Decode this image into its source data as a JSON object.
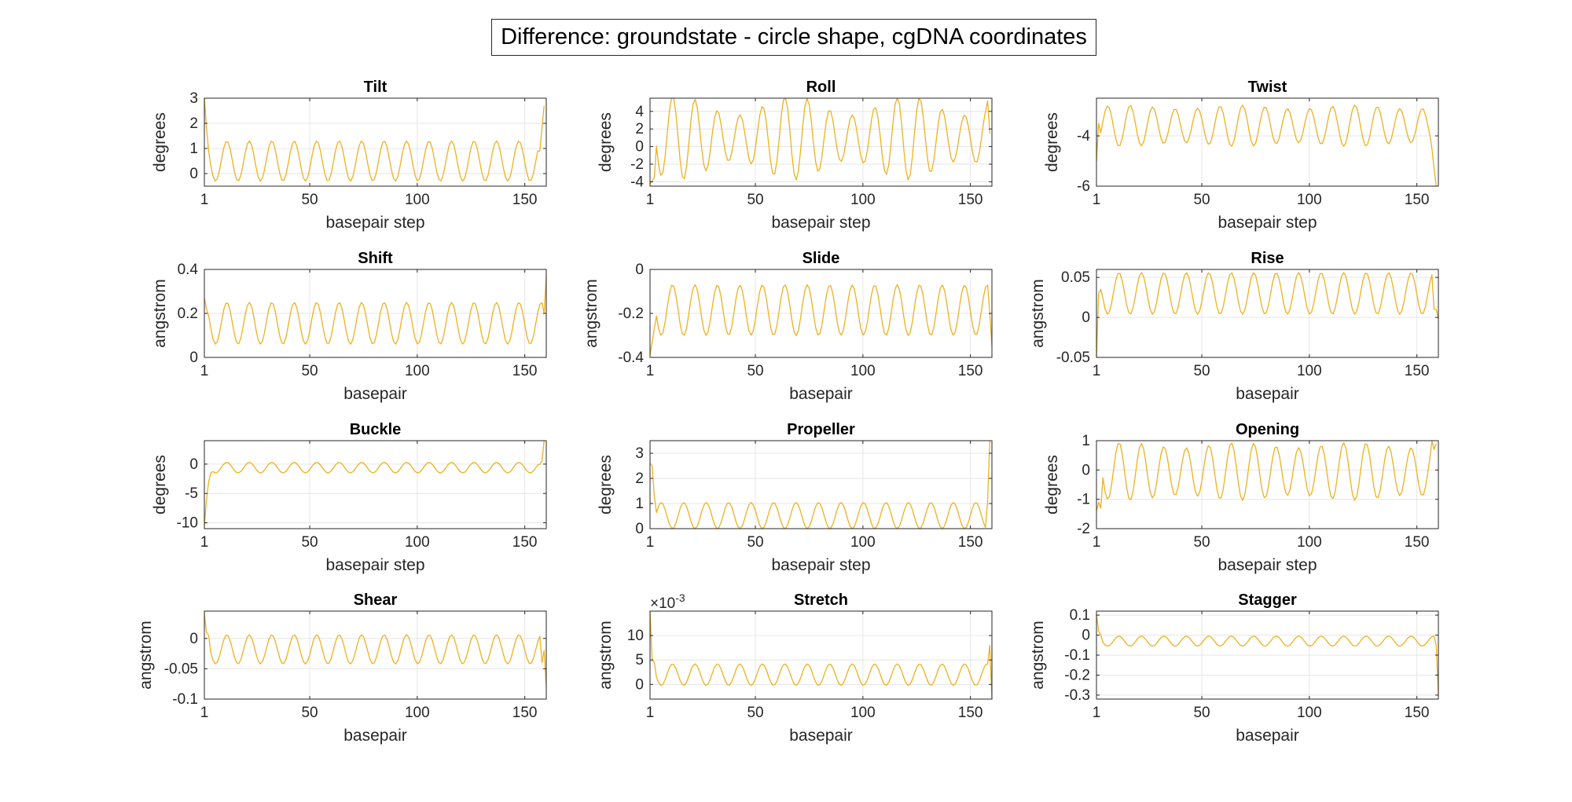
{
  "figure": {
    "title": "Difference: groundstate - circle shape, cgDNA coordinates"
  },
  "colors": {
    "line": "#EDB120",
    "axes": "#262626",
    "grid": "#E6E6E6",
    "background": "#FFFFFF"
  },
  "chart_data": [
    {
      "type": "line",
      "title": "Tilt",
      "xlabel": "basepair step",
      "ylabel": "degrees",
      "x_range": [
        1,
        159
      ],
      "xlim": [
        1,
        160
      ],
      "xticks": [
        1,
        50,
        100,
        150
      ],
      "ylim": [
        -0.5,
        3
      ],
      "yticks": [
        0,
        1,
        2,
        3
      ],
      "exponent": "",
      "grid": true,
      "series": [
        {
          "mean": 0.5,
          "amplitude": 0.8,
          "period": 10.45,
          "phase": 0,
          "amplitude_drift": 0,
          "start": [
            3.0,
            1.8,
            0.9
          ],
          "end": [
            0.9,
            1.8,
            2.7
          ]
        }
      ]
    },
    {
      "type": "line",
      "title": "Roll",
      "xlabel": "basepair step",
      "ylabel": "degrees",
      "x_range": [
        1,
        159
      ],
      "xlim": [
        1,
        160
      ],
      "xticks": [
        1,
        50,
        100,
        150
      ],
      "ylim": [
        -4.5,
        5.5
      ],
      "yticks": [
        -4,
        -2,
        0,
        2,
        4
      ],
      "exponent": "",
      "grid": true,
      "series": [
        {
          "mean": 1.0,
          "amplitude": 3.7,
          "period": 10.45,
          "phase": 0,
          "amplitude_drift": 0.3,
          "start": [
            -4.2,
            -3.9,
            -3.5
          ],
          "end": [
            5.2,
            1.5
          ]
        }
      ]
    },
    {
      "type": "line",
      "title": "Twist",
      "xlabel": "basepair step",
      "ylabel": "degrees",
      "x_range": [
        1,
        159
      ],
      "xlim": [
        1,
        160
      ],
      "xticks": [
        1,
        50,
        100,
        150
      ],
      "ylim": [
        -6,
        -2.5
      ],
      "yticks": [
        -6,
        -4
      ],
      "exponent": "",
      "grid": true,
      "series": [
        {
          "mean": -3.6,
          "amplitude": 0.75,
          "period": 10.45,
          "phase": 3.14,
          "amplitude_drift": 0.1,
          "start": [
            -5.0,
            -3.5
          ],
          "end": [
            -4.5,
            -5.3,
            -6.0
          ]
        }
      ]
    },
    {
      "type": "line",
      "title": "Shift",
      "xlabel": "basepair",
      "ylabel": "angstrom",
      "x_range": [
        1,
        160
      ],
      "xlim": [
        1,
        160
      ],
      "xticks": [
        1,
        50,
        100,
        150
      ],
      "ylim": [
        0,
        0.4
      ],
      "yticks": [
        0,
        0.2,
        0.4
      ],
      "exponent": "",
      "grid": true,
      "series": [
        {
          "mean": 0.155,
          "amplitude": 0.095,
          "period": 10.45,
          "phase": 0,
          "amplitude_drift": 0,
          "start": [
            0.27,
            0.22
          ],
          "end": [
            0.2,
            0.37
          ]
        }
      ]
    },
    {
      "type": "line",
      "title": "Slide",
      "xlabel": "basepair",
      "ylabel": "angstrom",
      "x_range": [
        1,
        160
      ],
      "xlim": [
        1,
        160
      ],
      "xticks": [
        1,
        50,
        100,
        150
      ],
      "ylim": [
        -0.4,
        0
      ],
      "yticks": [
        -0.4,
        -0.2,
        0
      ],
      "exponent": "",
      "grid": true,
      "series": [
        {
          "mean": -0.185,
          "amplitude": 0.115,
          "period": 10.45,
          "phase": 0,
          "amplitude_drift": 0.01,
          "start": [
            -0.39,
            -0.33,
            -0.27
          ],
          "end": [
            -0.2,
            -0.35
          ]
        }
      ]
    },
    {
      "type": "line",
      "title": "Rise",
      "xlabel": "basepair",
      "ylabel": "angstrom",
      "x_range": [
        1,
        160
      ],
      "xlim": [
        1,
        160
      ],
      "xticks": [
        1,
        50,
        100,
        150
      ],
      "ylim": [
        -0.05,
        0.06
      ],
      "yticks": [
        -0.05,
        0,
        0.05
      ],
      "exponent": "",
      "grid": true,
      "series": [
        {
          "mean": 0.03,
          "amplitude": 0.026,
          "period": 10.45,
          "phase": 0,
          "amplitude_drift": 0,
          "start": [
            -0.05,
            0.03,
            0.035
          ],
          "end": [
            0.01,
            0.01,
            -0.002
          ]
        }
      ]
    },
    {
      "type": "line",
      "title": "Buckle",
      "xlabel": "basepair step",
      "ylabel": "degrees",
      "x_range": [
        1,
        159
      ],
      "xlim": [
        1,
        160
      ],
      "xticks": [
        1,
        50,
        100,
        150
      ],
      "ylim": [
        -11,
        4
      ],
      "yticks": [
        -10,
        -5,
        0
      ],
      "exponent": "",
      "grid": true,
      "series": [
        {
          "mean": -0.6,
          "amplitude": 0.9,
          "period": 10.45,
          "phase": 0,
          "amplitude_drift": 0,
          "start": [
            -10.5,
            -6,
            -3,
            -1.5
          ],
          "end": [
            0,
            0.5,
            4
          ]
        }
      ]
    },
    {
      "type": "line",
      "title": "Propeller",
      "xlabel": "basepair step",
      "ylabel": "degrees",
      "x_range": [
        1,
        159
      ],
      "xlim": [
        1,
        160
      ],
      "xticks": [
        1,
        50,
        100,
        150
      ],
      "ylim": [
        0,
        3.5
      ],
      "yticks": [
        0,
        1,
        2,
        3
      ],
      "exponent": "",
      "grid": true,
      "series": [
        {
          "mean": 0.52,
          "amplitude": 0.52,
          "period": 10.45,
          "phase": 3.14,
          "amplitude_drift": 0,
          "start": [
            2.6,
            2.5,
            1.3
          ],
          "end": [
            1.1,
            3.5
          ]
        }
      ]
    },
    {
      "type": "line",
      "title": "Opening",
      "xlabel": "basepair step",
      "ylabel": "degrees",
      "x_range": [
        1,
        159
      ],
      "xlim": [
        1,
        160
      ],
      "xticks": [
        1,
        50,
        100,
        150
      ],
      "ylim": [
        -2,
        1
      ],
      "yticks": [
        -2,
        -1,
        0,
        1
      ],
      "exponent": "",
      "grid": true,
      "series": [
        {
          "mean": -0.05,
          "amplitude": 0.9,
          "period": 10.45,
          "phase": 0,
          "amplitude_drift": 0.1,
          "start": [
            -1.4,
            -1.1,
            -1.3
          ],
          "end": [
            1.0,
            0.7,
            0.9
          ]
        }
      ]
    },
    {
      "type": "line",
      "title": "Shear",
      "xlabel": "basepair",
      "ylabel": "angstrom",
      "x_range": [
        1,
        160
      ],
      "xlim": [
        1,
        160
      ],
      "xticks": [
        1,
        50,
        100,
        150
      ],
      "ylim": [
        -0.1,
        0.045
      ],
      "yticks": [
        -0.1,
        -0.05,
        0
      ],
      "exponent": "",
      "grid": true,
      "series": [
        {
          "mean": -0.018,
          "amplitude": 0.024,
          "period": 10.45,
          "phase": 0,
          "amplitude_drift": 0,
          "start": [
            0.04,
            0.01,
            0.005
          ],
          "end": [
            -0.04,
            -0.02,
            -0.08
          ]
        }
      ]
    },
    {
      "type": "line",
      "title": "Stretch",
      "xlabel": "basepair",
      "ylabel": "angstrom",
      "x_range": [
        1,
        160
      ],
      "xlim": [
        1,
        160
      ],
      "xticks": [
        1,
        50,
        100,
        150
      ],
      "ylim": [
        -3,
        15
      ],
      "yticks": [
        0,
        5,
        10
      ],
      "exponent": "-3",
      "grid": true,
      "series": [
        {
          "mean": 2.0,
          "amplitude": 2.2,
          "period": 10.45,
          "phase": 0,
          "amplitude_drift": 0,
          "start": [
            15,
            5,
            4.5
          ],
          "end": [
            8,
            -3
          ]
        }
      ]
    },
    {
      "type": "line",
      "title": "Stagger",
      "xlabel": "basepair",
      "ylabel": "angstrom",
      "x_range": [
        1,
        160
      ],
      "xlim": [
        1,
        160
      ],
      "xticks": [
        1,
        50,
        100,
        150
      ],
      "ylim": [
        -0.32,
        0.12
      ],
      "yticks": [
        -0.3,
        -0.2,
        -0.1,
        0,
        0.1
      ],
      "exponent": "",
      "grid": true,
      "series": [
        {
          "mean": -0.03,
          "amplitude": 0.025,
          "period": 10.45,
          "phase": 0,
          "amplitude_drift": 0,
          "start": [
            0.1,
            0.02,
            0.0
          ],
          "end": [
            -0.05,
            -0.3
          ]
        }
      ]
    }
  ]
}
